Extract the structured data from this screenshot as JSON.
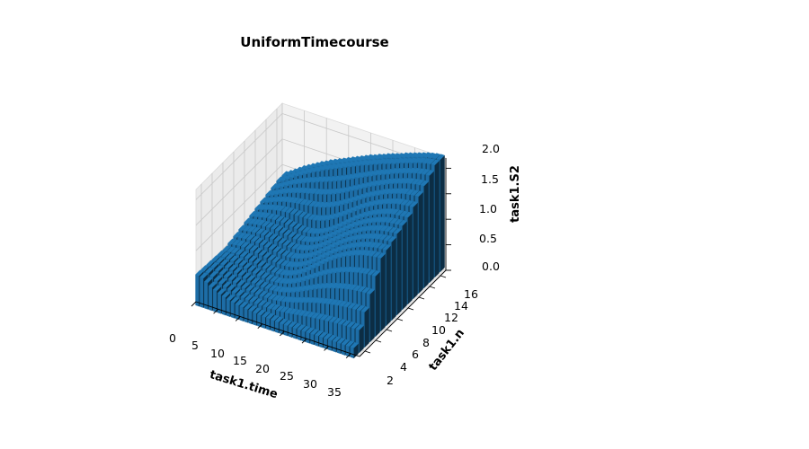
{
  "chart_data": {
    "type": "bar3d",
    "title": "UniformTimecourse",
    "xlabel": "task1.time",
    "ylabel": "task1.n",
    "zlabel": "task1.S2",
    "xlim": [
      0,
      37
    ],
    "ylim": [
      1,
      17
    ],
    "zlim": [
      0,
      2.2
    ],
    "xticks": [
      "0",
      "5",
      "10",
      "15",
      "20",
      "25",
      "30",
      "35"
    ],
    "yticks": [
      "2",
      "4",
      "6",
      "8",
      "10",
      "12",
      "14",
      "16"
    ],
    "zticks": [
      "0.0",
      "0.5",
      "1.0",
      "1.5",
      "2.0"
    ],
    "grid": true,
    "bar_color": "#1f77b4",
    "series": [
      {
        "n": 1,
        "values": [
          0.6,
          0.58,
          0.52,
          0.46,
          0.42,
          0.38,
          0.35,
          0.32,
          0.3,
          0.28,
          0.27,
          0.26,
          0.25,
          0.24,
          0.23,
          0.22,
          0.22,
          0.21,
          0.21,
          0.2,
          0.2,
          0.2,
          0.2,
          0.2,
          0.2,
          0.2,
          0.2,
          0.2,
          0.2,
          0.2,
          0.2,
          0.2,
          0.2,
          0.2,
          0.2,
          0.2
        ]
      },
      {
        "n": 16,
        "values": [
          0.85,
          0.9,
          0.96,
          1.02,
          1.08,
          1.13,
          1.18,
          1.23,
          1.28,
          1.32,
          1.37,
          1.41,
          1.45,
          1.49,
          1.53,
          1.57,
          1.61,
          1.65,
          1.69,
          1.73,
          1.76,
          1.8,
          1.83,
          1.87,
          1.9,
          1.93,
          1.96,
          2.0,
          2.03,
          2.06,
          2.09,
          2.12,
          2.15,
          2.17,
          2.19,
          2.2
        ]
      },
      {
        "n": 11,
        "values": [
          0.7,
          0.72,
          0.74,
          0.76,
          0.77,
          0.78,
          0.78,
          0.78,
          0.77,
          0.76,
          0.75,
          0.74,
          0.74,
          0.75,
          0.77,
          0.8,
          0.84,
          0.89,
          0.95,
          1.01,
          1.08,
          1.15,
          1.22,
          1.29,
          1.35,
          1.41,
          1.46,
          1.51,
          1.55,
          1.59,
          1.62,
          1.65,
          1.67,
          1.68,
          1.69,
          1.7
        ]
      },
      {
        "n": 6,
        "values": [
          0.55,
          0.56,
          0.57,
          0.57,
          0.56,
          0.55,
          0.53,
          0.51,
          0.49,
          0.47,
          0.46,
          0.45,
          0.45,
          0.46,
          0.48,
          0.51,
          0.55,
          0.6,
          0.66,
          0.73,
          0.8,
          0.87,
          0.94,
          1.01,
          1.07,
          1.13,
          1.18,
          1.23,
          1.27,
          1.31,
          1.34,
          1.37,
          1.39,
          1.41,
          1.42,
          1.43
        ]
      }
    ]
  }
}
